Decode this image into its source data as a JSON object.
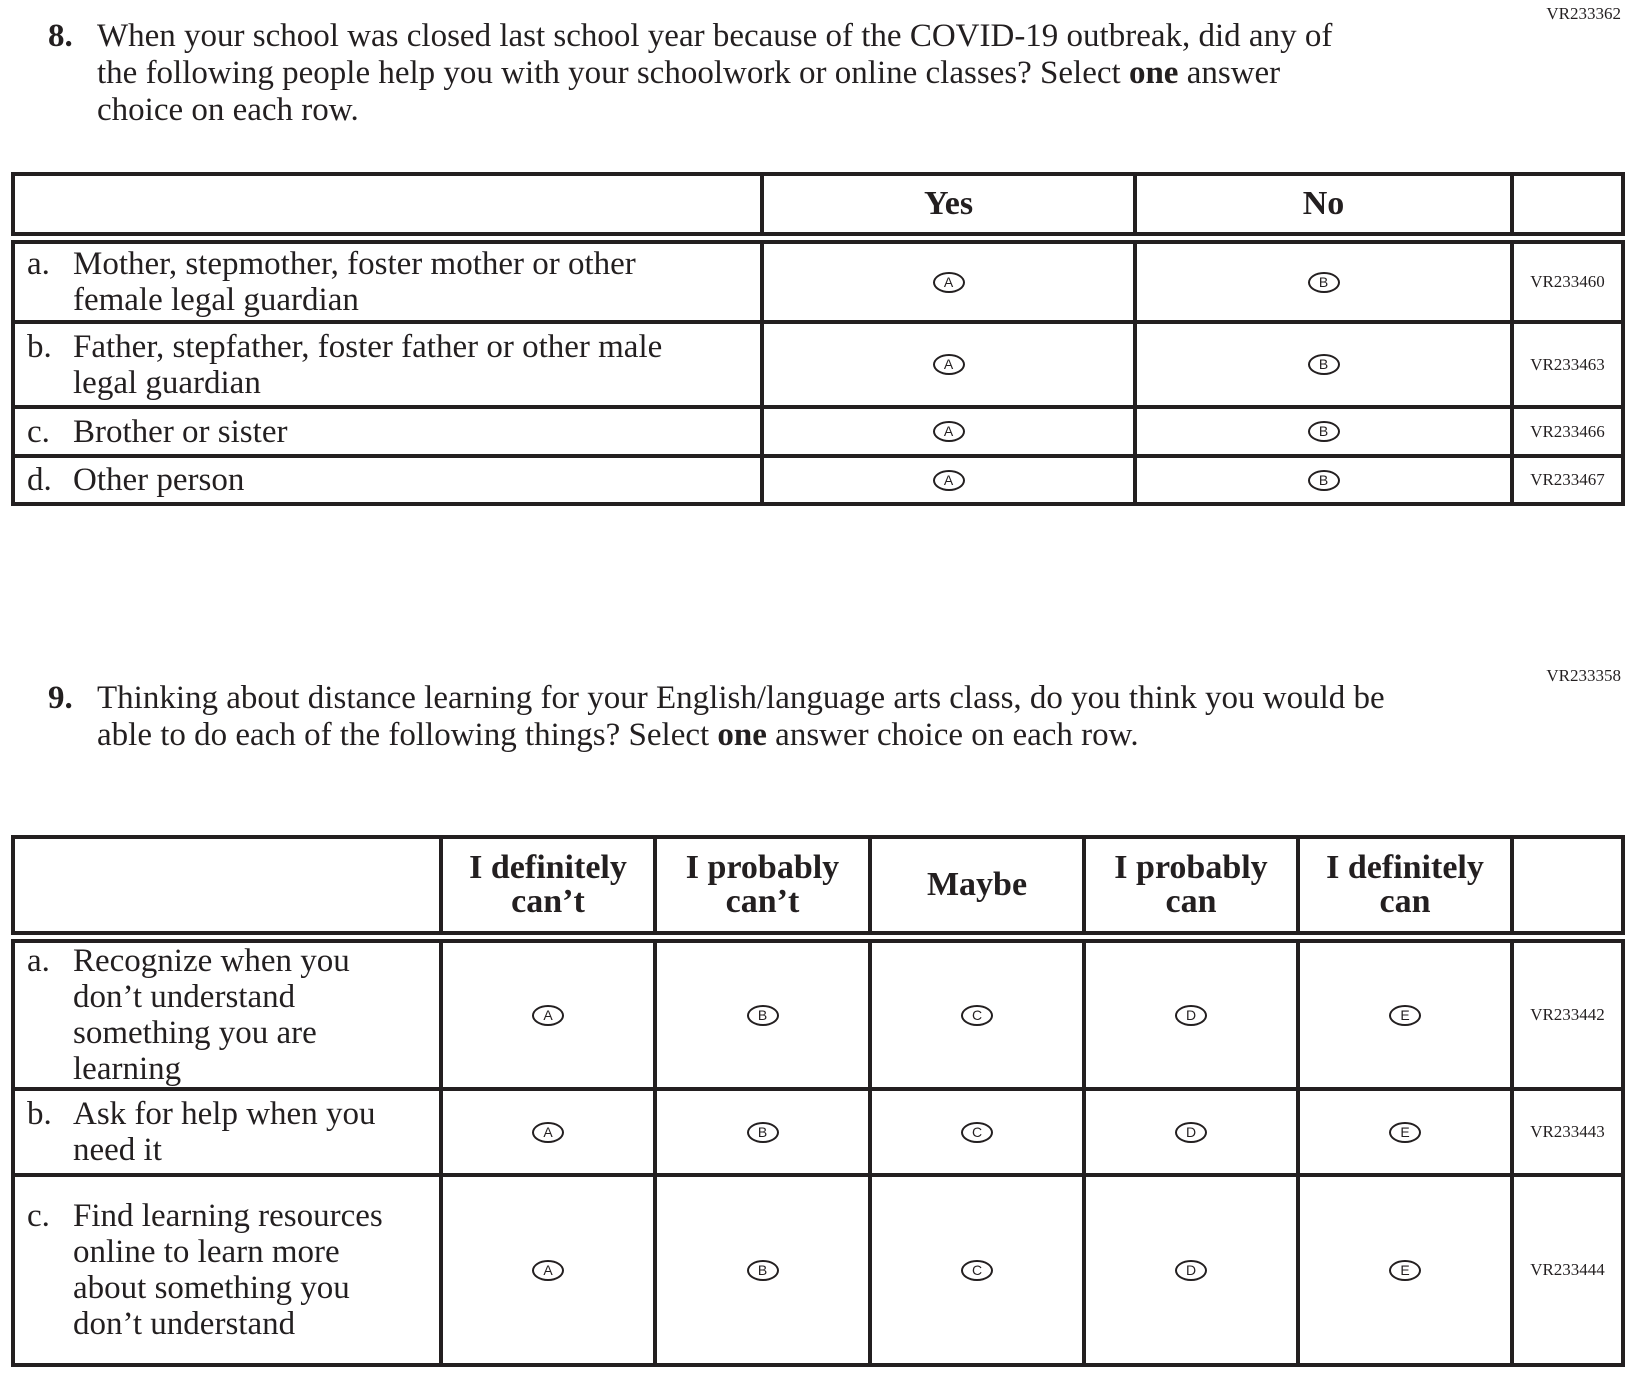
{
  "q8": {
    "code": "VR233362",
    "number": "8.",
    "text_before": "When your school was closed last school year because of the COVID-19 outbreak, did any of the following people help you with your schoolwork or online classes? Select ",
    "text_bold": "one",
    "text_after": " answer choice on each row.",
    "columns": [
      "Yes",
      "No"
    ],
    "rows": [
      {
        "letter": "a.",
        "text": "Mother, stepmother, foster mother or other female legal guardian",
        "code": "VR233460"
      },
      {
        "letter": "b.",
        "text": "Father, stepfather, foster father or other male legal guardian",
        "code": "VR233463"
      },
      {
        "letter": "c.",
        "text": "Brother or sister",
        "code": "VR233466"
      },
      {
        "letter": "d.",
        "text": "Other person",
        "code": "VR233467"
      }
    ],
    "options": [
      "A",
      "B"
    ]
  },
  "q9": {
    "code": "VR233358",
    "number": "9.",
    "text_before": "Thinking about distance learning for your English/language arts class, do you think you would be able to do each of the following things? Select ",
    "text_bold": "one",
    "text_after": " answer choice on each row.",
    "columns": [
      "I definitely can’t",
      "I probably can’t",
      "Maybe",
      "I probably can",
      "I definitely can"
    ],
    "rows": [
      {
        "letter": "a.",
        "text": "Recognize when you don’t understand something you are learning",
        "code": "VR233442"
      },
      {
        "letter": "b.",
        "text": "Ask for help when you need it",
        "code": "VR233443"
      },
      {
        "letter": "c.",
        "text": "Find learning resources online to learn more about something you don’t understand",
        "code": "VR233444"
      }
    ],
    "options": [
      "A",
      "B",
      "C",
      "D",
      "E"
    ]
  }
}
